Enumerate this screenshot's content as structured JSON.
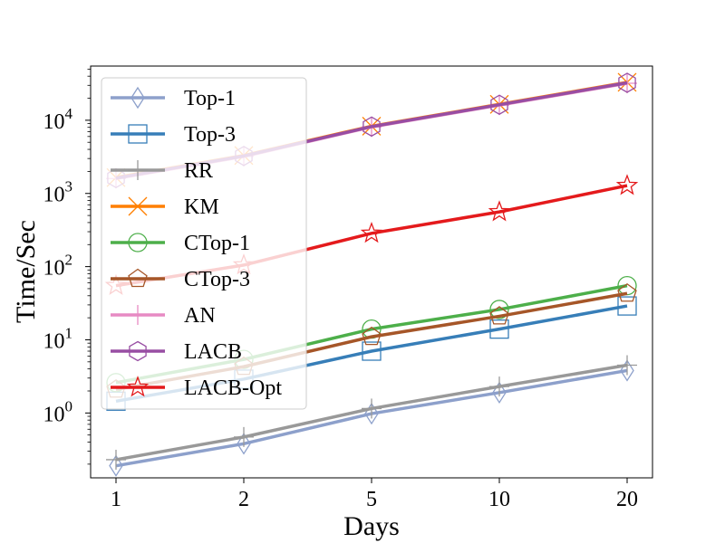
{
  "chart_data": {
    "type": "line",
    "yscale": "log",
    "xlabel": "Days",
    "ylabel": "Time/Sec",
    "categories": [
      "1",
      "2",
      "5",
      "10",
      "20"
    ],
    "ylim": [
      0.13,
      55000
    ],
    "y_ticks": [
      {
        "value": 1,
        "base": "10",
        "exp": "0"
      },
      {
        "value": 10,
        "base": "10",
        "exp": "1"
      },
      {
        "value": 100,
        "base": "10",
        "exp": "2"
      },
      {
        "value": 1000,
        "base": "10",
        "exp": "3"
      },
      {
        "value": 10000,
        "base": "10",
        "exp": "4"
      }
    ],
    "legend_position": "top-left",
    "series": [
      {
        "name": "Top-1",
        "color": "#8da0cb",
        "marker": "thin-diamond",
        "values": [
          0.19,
          0.38,
          0.98,
          1.9,
          3.8
        ]
      },
      {
        "name": "Top-3",
        "color": "#377eb8",
        "marker": "square",
        "values": [
          1.45,
          2.9,
          7.0,
          14,
          29
        ]
      },
      {
        "name": "RR",
        "color": "#999999",
        "marker": "plus",
        "values": [
          0.23,
          0.47,
          1.15,
          2.3,
          4.5
        ]
      },
      {
        "name": "KM",
        "color": "#ff7f00",
        "marker": "x",
        "values": [
          1650,
          3300,
          8300,
          16500,
          33000
        ]
      },
      {
        "name": "CTop-1",
        "color": "#4daf4a",
        "marker": "circle",
        "values": [
          2.6,
          5.4,
          14,
          26,
          55
        ]
      },
      {
        "name": "CTop-3",
        "color": "#a65628",
        "marker": "pentagon",
        "values": [
          2.1,
          4.3,
          11,
          21,
          43
        ]
      },
      {
        "name": "AN",
        "color": "#e78ac3",
        "marker": "plus",
        "values": [
          1600,
          3200,
          8100,
          16100,
          32000
        ]
      },
      {
        "name": "LACB",
        "color": "#984ea3",
        "marker": "hexagon",
        "values": [
          1620,
          3250,
          8200,
          16300,
          32500
        ]
      },
      {
        "name": "LACB-Opt",
        "color": "#e41a1c",
        "marker": "star",
        "values": [
          55,
          105,
          285,
          560,
          1280
        ]
      }
    ]
  }
}
